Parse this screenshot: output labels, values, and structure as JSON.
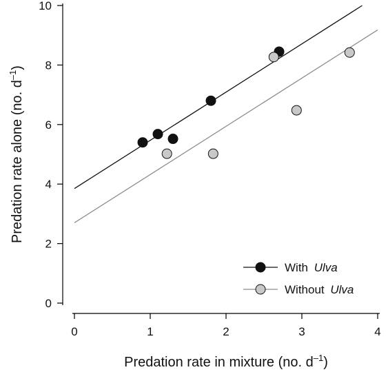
{
  "chart_data": {
    "type": "scatter",
    "xlabel": "Predation rate in mixture (no. d",
    "ylabel": "Predation rate alone (no. d",
    "axis_label_unit_exponent": "–1",
    "axis_label_unit_close": ")",
    "xlim": [
      0,
      4
    ],
    "ylim": [
      0,
      10
    ],
    "xticks": [
      "0",
      "1",
      "2",
      "3",
      "4"
    ],
    "yticks": [
      "0",
      "2",
      "4",
      "6",
      "8",
      "10"
    ],
    "grid": false,
    "legend_position": "bottom-right",
    "series": [
      {
        "name_prefix": "With ",
        "name_italic": "Ulva",
        "color": "#111111",
        "marker_fill": "#111111",
        "points": [
          {
            "x": 0.9,
            "y": 5.4
          },
          {
            "x": 1.1,
            "y": 5.68
          },
          {
            "x": 1.3,
            "y": 5.52
          },
          {
            "x": 1.8,
            "y": 6.8
          },
          {
            "x": 2.7,
            "y": 8.45
          }
        ],
        "fit_line": {
          "intercept": 3.85,
          "slope": 1.62
        }
      },
      {
        "name_prefix": "Without ",
        "name_italic": "Ulva",
        "color": "#8c8c8c",
        "marker_fill": "#c8c8c8",
        "points": [
          {
            "x": 1.22,
            "y": 5.02
          },
          {
            "x": 1.83,
            "y": 5.02
          },
          {
            "x": 2.63,
            "y": 8.27
          },
          {
            "x": 2.93,
            "y": 6.48
          },
          {
            "x": 3.63,
            "y": 8.42
          }
        ],
        "fit_line": {
          "intercept": 2.7,
          "slope": 1.62
        }
      }
    ]
  }
}
